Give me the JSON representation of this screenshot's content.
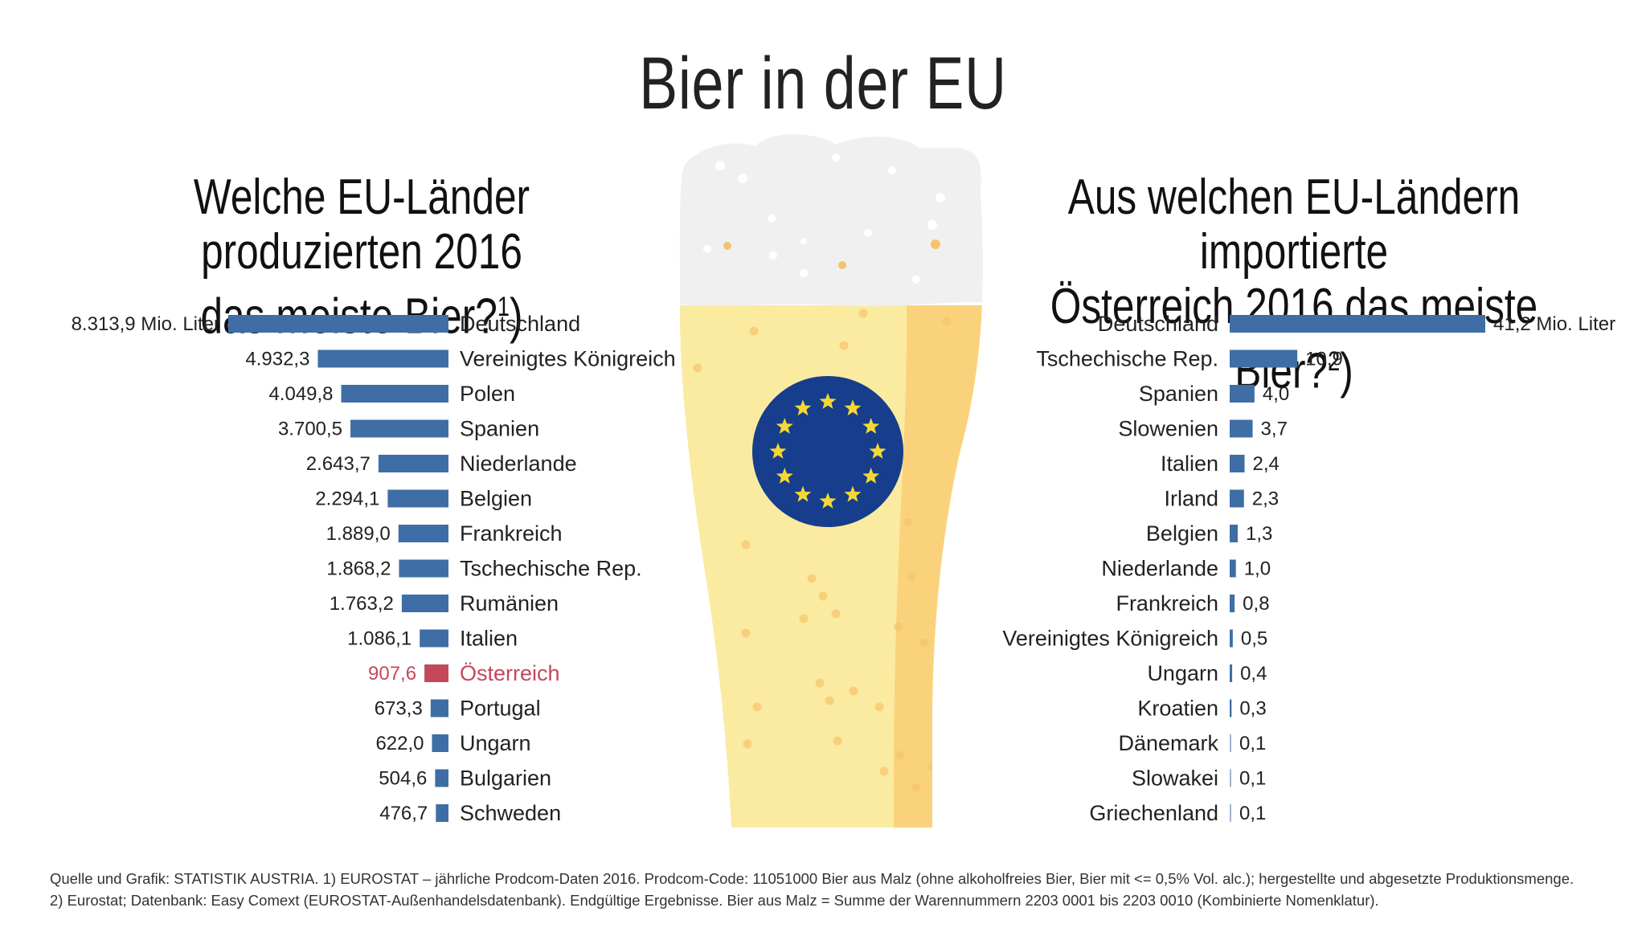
{
  "title": "Bier in der EU",
  "left_subtitle": {
    "line1": "Welche EU-Länder produzierten 2016",
    "line2": "das meiste Bier?",
    "footnote_mark": "1",
    "close": ")"
  },
  "right_subtitle": {
    "line1": "Aus welchen EU-Ländern importierte",
    "line2": "Österreich 2016 das meiste Bier?",
    "footnote_mark": "2",
    "close": ")"
  },
  "colors": {
    "bar": "#3f6ea6",
    "highlight": "#c4485a",
    "text": "#222222",
    "eu_blue": "#163e8c",
    "eu_star": "#f5d833",
    "beer": "#fbeba0",
    "beer_dark": "#fbd27c",
    "foam": "#f0f0f0",
    "bubble": "#f6c36b"
  },
  "chart_data": [
    {
      "type": "bar",
      "orientation": "horizontal",
      "title": "Welche EU-Länder produzierten 2016 das meiste Bier?1)",
      "unit": "Mio. Liter",
      "categories": [
        "Deutschland",
        "Vereinigtes Königreich",
        "Polen",
        "Spanien",
        "Niederlande",
        "Belgien",
        "Frankreich",
        "Tschechische Rep.",
        "Rumänien",
        "Italien",
        "Österreich",
        "Portugal",
        "Ungarn",
        "Bulgarien",
        "Schweden"
      ],
      "values": [
        8313.9,
        4932.3,
        4049.8,
        3700.5,
        2643.7,
        2294.1,
        1889.0,
        1868.2,
        1763.2,
        1086.1,
        907.6,
        673.3,
        622.0,
        504.6,
        476.7
      ],
      "value_labels": [
        "8.313,9 Mio. Liter",
        "4.932,3",
        "4.049,8",
        "3.700,5",
        "2.643,7",
        "2.294,1",
        "1.889,0",
        "1.868,2",
        "1.763,2",
        "1.086,1",
        "907,6",
        "673,3",
        "622,0",
        "504,6",
        "476,7"
      ],
      "highlight": "Österreich"
    },
    {
      "type": "bar",
      "orientation": "horizontal",
      "title": "Aus welchen EU-Ländern importierte Österreich 2016 das meiste Bier?2)",
      "unit": "Mio. Liter",
      "categories": [
        "Deutschland",
        "Tschechische Rep.",
        "Spanien",
        "Slowenien",
        "Italien",
        "Irland",
        "Belgien",
        "Niederlande",
        "Frankreich",
        "Vereinigtes Königreich",
        "Ungarn",
        "Kroatien",
        "Dänemark",
        "Slowakei",
        "Griechenland"
      ],
      "values": [
        41.2,
        10.9,
        4.0,
        3.7,
        2.4,
        2.3,
        1.3,
        1.0,
        0.8,
        0.5,
        0.4,
        0.3,
        0.1,
        0.1,
        0.1
      ],
      "value_labels": [
        "41,2 Mio. Liter",
        "10,9",
        "4,0",
        "3,7",
        "2,4",
        "2,3",
        "1,3",
        "1,0",
        "0,8",
        "0,5",
        "0,4",
        "0,3",
        "0,1",
        "0,1",
        "0,1"
      ]
    }
  ],
  "footnotes": {
    "line1": "Quelle und Grafik: STATISTIK AUSTRIA. 1) EUROSTAT – jährliche Prodcom-Daten 2016. Prodcom-Code: 11051000 Bier aus Malz (ohne alkoholfreies Bier, Bier mit <= 0,5% Vol. alc.); hergestellte und abgesetzte Produktionsmenge.",
    "line2": "2) Eurostat; Datenbank: Easy Comext (EUROSTAT-Außenhandelsdatenbank). Endgültige Ergebnisse. Bier aus Malz = Summe der Warennummern 2203 0001 bis 2203 0010 (Kombinierte Nomenklatur)."
  },
  "illustration": {
    "name": "beer-glass",
    "emblem": "eu-flag-icon"
  }
}
